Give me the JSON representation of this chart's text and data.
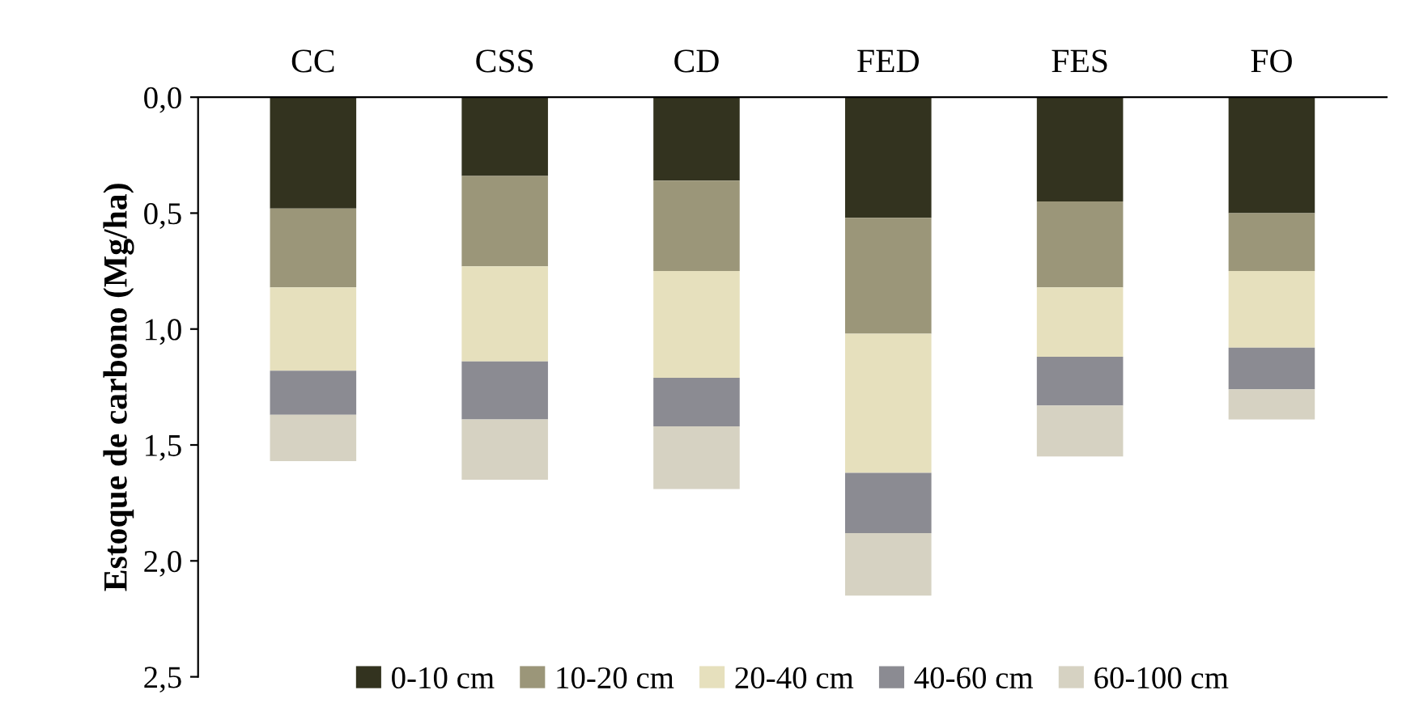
{
  "chart_data": {
    "type": "bar",
    "stacked": true,
    "ylabel": "Estoque de carbono (Mg/ha)",
    "categories": [
      "CC",
      "CSS",
      "CD",
      "FED",
      "FES",
      "FO"
    ],
    "series": [
      {
        "name": "0-10 cm",
        "color": "#33331f",
        "values": [
          0.48,
          0.34,
          0.36,
          0.52,
          0.45,
          0.5
        ]
      },
      {
        "name": "10-20 cm",
        "color": "#9b9679",
        "values": [
          0.34,
          0.39,
          0.39,
          0.5,
          0.37,
          0.25
        ]
      },
      {
        "name": "20-40 cm",
        "color": "#e6e0bd",
        "values": [
          0.36,
          0.41,
          0.46,
          0.6,
          0.3,
          0.33
        ]
      },
      {
        "name": "40-60 cm",
        "color": "#8b8b92",
        "values": [
          0.19,
          0.25,
          0.21,
          0.26,
          0.21,
          0.18
        ]
      },
      {
        "name": "60-100 cm",
        "color": "#d6d2c2",
        "values": [
          0.2,
          0.26,
          0.27,
          0.27,
          0.22,
          0.13
        ]
      }
    ],
    "ylim": [
      2.5,
      0
    ],
    "yticks": [
      {
        "value": 0,
        "label": "0,0"
      },
      {
        "value": 0.5,
        "label": "0,5"
      },
      {
        "value": 1.0,
        "label": "1,0"
      },
      {
        "value": 1.5,
        "label": "1,5"
      },
      {
        "value": 2.0,
        "label": "2,0"
      },
      {
        "value": 2.5,
        "label": "2,5"
      }
    ],
    "legend": "bottom",
    "grid": false
  }
}
